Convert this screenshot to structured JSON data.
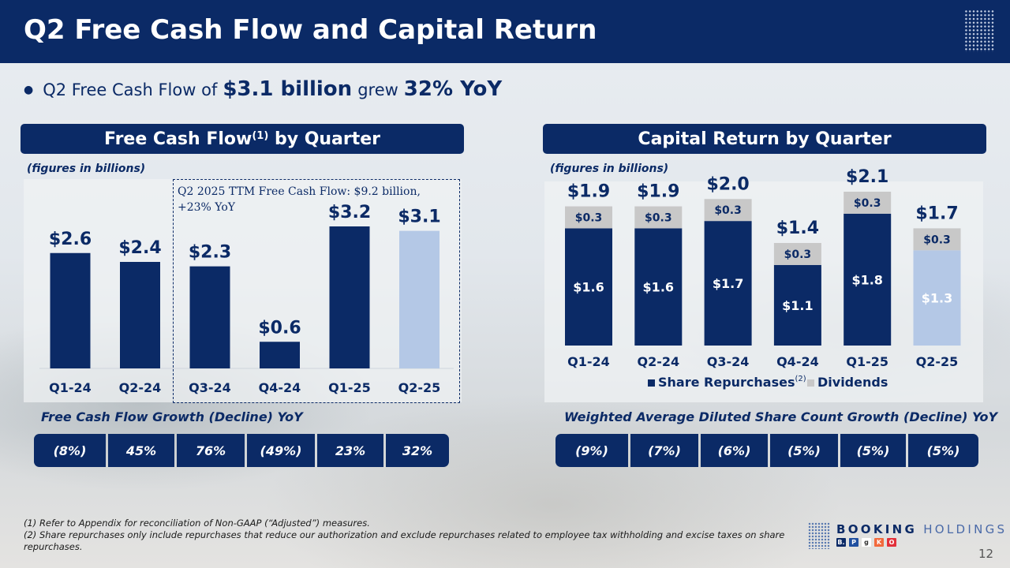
{
  "header": {
    "title": "Q2 Free Cash Flow and Capital Return"
  },
  "headline": {
    "bullet": "●",
    "prefix": "Q2 Free Cash Flow of",
    "amount": "$3.1 billion",
    "middle": "grew",
    "growth": "32% YoY"
  },
  "left_section": {
    "title": "Free Cash Flow",
    "title_sup": "(1)",
    "title_suffix": " by Quarter",
    "note": "(figures in billions)",
    "ttm_line1": "Q2 2025 TTM Free Cash Flow: $9.2 billion,",
    "ttm_line2": "+23% YoY",
    "growth_title": "Free Cash Flow Growth (Decline) YoY",
    "growth_values": [
      "(8%)",
      "45%",
      "76%",
      "(49%)",
      "23%",
      "32%"
    ]
  },
  "right_section": {
    "title": "Capital Return by Quarter",
    "note": "(figures in billions)",
    "growth_title": "Weighted Average Diluted Share Count Growth (Decline) YoY",
    "growth_values": [
      "(9%)",
      "(7%)",
      "(6%)",
      "(5%)",
      "(5%)",
      "(5%)"
    ]
  },
  "chart_data": [
    {
      "type": "bar",
      "title": "Free Cash Flow by Quarter",
      "categories": [
        "Q1-24",
        "Q2-24",
        "Q3-24",
        "Q4-24",
        "Q1-25",
        "Q2-25"
      ],
      "values": [
        2.6,
        2.4,
        2.3,
        0.6,
        3.2,
        3.1
      ],
      "labels": [
        "$2.6",
        "$2.4",
        "$2.3",
        "$0.6",
        "$3.2",
        "$3.1"
      ],
      "ylabel": "figures in billions",
      "ylim": [
        0,
        3.2
      ],
      "highlight_index": 5,
      "colors": {
        "bar": "#0b2a66",
        "highlight": "#b4c8e6"
      }
    },
    {
      "type": "bar",
      "stacked": true,
      "title": "Capital Return by Quarter",
      "categories": [
        "Q1-24",
        "Q2-24",
        "Q3-24",
        "Q4-24",
        "Q1-25",
        "Q2-25"
      ],
      "series": [
        {
          "name": "Share Repurchases",
          "name_sup": "(2)",
          "values": [
            1.6,
            1.6,
            1.7,
            1.1,
            1.8,
            1.3
          ],
          "labels": [
            "$1.6",
            "$1.6",
            "$1.7",
            "$1.1",
            "$1.8",
            "$1.3"
          ],
          "color": "#0b2a66"
        },
        {
          "name": "Dividends",
          "values": [
            0.3,
            0.3,
            0.3,
            0.3,
            0.3,
            0.3
          ],
          "labels": [
            "$0.3",
            "$0.3",
            "$0.3",
            "$0.3",
            "$0.3",
            "$0.3"
          ],
          "color": "#c8c8c8"
        }
      ],
      "totals": [
        1.9,
        1.9,
        2.0,
        1.4,
        2.1,
        1.7
      ],
      "total_labels": [
        "$1.9",
        "$1.9",
        "$2.0",
        "$1.4",
        "$2.1",
        "$1.7"
      ],
      "ylabel": "figures in billions",
      "ylim": [
        0,
        2.1
      ],
      "legend": "bottom",
      "highlight_index": 5,
      "highlight_color": "#b4c8e6"
    }
  ],
  "footnotes": {
    "note1": "(1) Refer to Appendix for reconciliation of Non-GAAP (“Adjusted”) measures.",
    "note2": "(2) Share repurchases only include repurchases that reduce our authorization and exclude repurchases related to employee tax withholding and excise taxes on share repurchases."
  },
  "logo": {
    "word1": "BOOKING",
    "word2": "HOLDINGS",
    "brands": [
      "B.",
      "P",
      "g",
      "K",
      "O"
    ]
  },
  "page_number": "12"
}
